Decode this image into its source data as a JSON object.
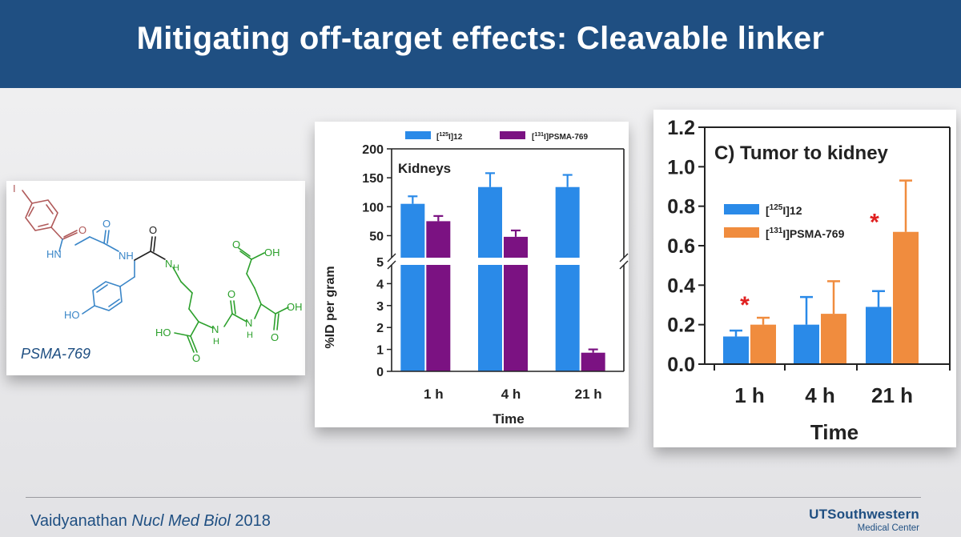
{
  "slide": {
    "title": "Mitigating off-target effects: Cleavable linker",
    "citation_author": "Vaidyanathan",
    "citation_journal": "Nucl Med Biol",
    "citation_year": "2018",
    "logo_main": "UTSouthwestern",
    "logo_sub": "Medical Center"
  },
  "structure": {
    "atoms": [
      "I",
      "O",
      "HN",
      "O",
      "NH",
      "O",
      "N",
      "H",
      "HO",
      "O",
      "OH",
      "HO",
      "N",
      "H",
      "N",
      "H",
      "O",
      "OH",
      "O",
      "O"
    ],
    "caption": "PSMA-769",
    "colors": {
      "iodobenzoyl": "#b05a5a",
      "linker": "#3a86c8",
      "lysine_urea": "#2ca02c",
      "backbone": "#222222"
    }
  },
  "chart_data": [
    {
      "type": "bar",
      "title": "",
      "panel_label": "Kidneys",
      "xlabel": "Time",
      "ylabel": "%ID per gram",
      "categories": [
        "1 h",
        "4 h",
        "21 h"
      ],
      "broken_axis": true,
      "ylim_lower": [
        0,
        5
      ],
      "ylim_upper": [
        5,
        200
      ],
      "yticks_lower": [
        "0",
        "1",
        "2",
        "3",
        "4",
        "5"
      ],
      "yticks_upper": [
        "50",
        "100",
        "150",
        "200"
      ],
      "legend_position": "top",
      "series": [
        {
          "name": "[125I]12",
          "name_sup": "125",
          "name_text": "I]12",
          "color": "#2a8ae8",
          "values": [
            105,
            134,
            134
          ],
          "errors": [
            13,
            24,
            21
          ]
        },
        {
          "name": "[131I]PSMA-769",
          "name_sup": "131",
          "name_text": "I]PSMA-769",
          "color": "#7b1282",
          "values": [
            75,
            48,
            0.85
          ],
          "errors": [
            9,
            11,
            0.15
          ]
        }
      ]
    },
    {
      "type": "bar",
      "title": "C) Tumor to kidney",
      "xlabel": "Time",
      "ylabel": "",
      "categories": [
        "1 h",
        "4 h",
        "21 h"
      ],
      "ylim": [
        0,
        1.2
      ],
      "yticks": [
        "0.0",
        "0.2",
        "0.4",
        "0.6",
        "0.8",
        "1.0",
        "1.2"
      ],
      "legend_position": "middle-left",
      "significance_marker": "*",
      "significance_at": [
        "1 h",
        "21 h"
      ],
      "series": [
        {
          "name": "[125I]12",
          "name_sup": "125",
          "name_text": "I]12",
          "color": "#2a8ae8",
          "values": [
            0.14,
            0.2,
            0.29
          ],
          "errors": [
            0.03,
            0.14,
            0.08
          ]
        },
        {
          "name": "[131I]PSMA-769",
          "name_sup": "131",
          "name_text": "I]PSMA-769",
          "color": "#f08c3e",
          "values": [
            0.2,
            0.255,
            0.67
          ],
          "errors": [
            0.035,
            0.165,
            0.26
          ]
        }
      ]
    }
  ]
}
